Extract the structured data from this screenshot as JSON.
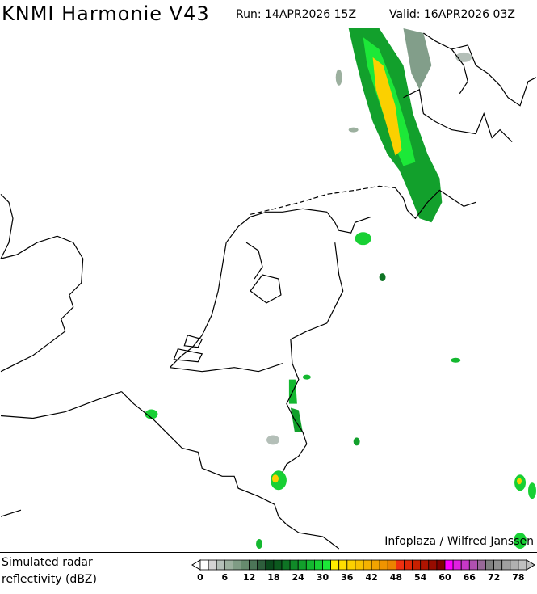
{
  "header": {
    "title": "KNMI Harmonie V43",
    "run": "Run: 14APR2026 15Z",
    "valid": "Valid: 16APR2026 03Z"
  },
  "map": {
    "attribution": "Infoplaza / Wilfred Janssen",
    "coast_color": "#000000"
  },
  "legend": {
    "label_line1": "Simulated radar",
    "label_line2": "reflectivity (dBZ)",
    "ticks": [
      "0",
      "6",
      "12",
      "18",
      "24",
      "30",
      "36",
      "42",
      "48",
      "54",
      "60",
      "66",
      "72",
      "78"
    ],
    "colors": [
      "#ffffff",
      "#d4d4d4",
      "#b4bfb8",
      "#9cb09f",
      "#7f9c85",
      "#668a6e",
      "#4c7558",
      "#2e5e3c",
      "#0a4a1c",
      "#0b5a1e",
      "#0e7424",
      "#108a28",
      "#12a02c",
      "#14b830",
      "#18d034",
      "#1ce838",
      "#ffee00",
      "#ffdd00",
      "#fbd000",
      "#f7c200",
      "#f4b200",
      "#f2a400",
      "#f09400",
      "#ec8400",
      "#f03010",
      "#e02808",
      "#c82000",
      "#b01400",
      "#980c00",
      "#800000",
      "#ff00ff",
      "#e020e0",
      "#c838c8",
      "#b050b0",
      "#986898",
      "#808080",
      "#909090",
      "#a0a0a0",
      "#b0b0b0",
      "#c0c0c0"
    ]
  }
}
